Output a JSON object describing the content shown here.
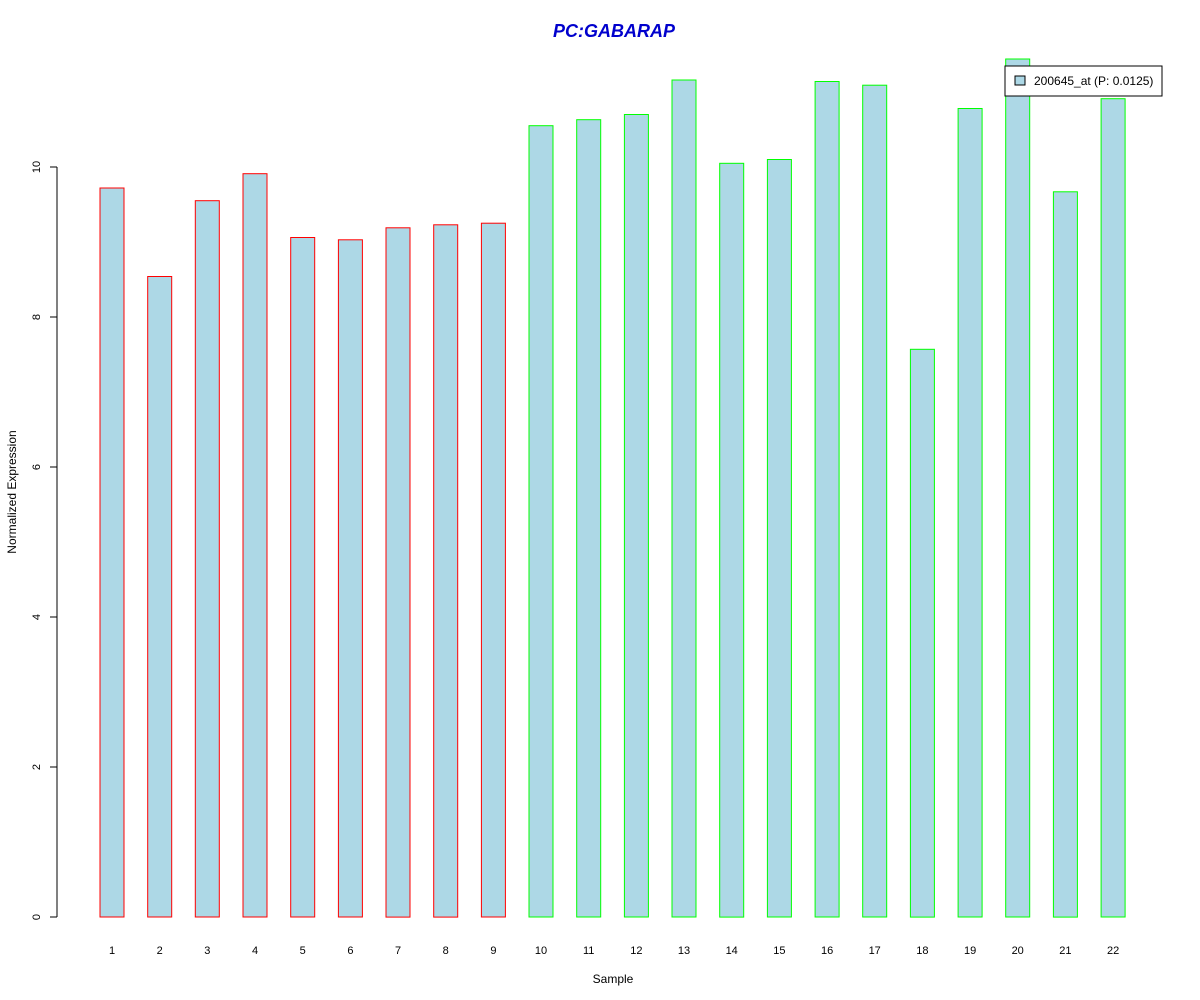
{
  "chart_data": {
    "type": "bar",
    "title": "PC:GABARAP",
    "xlabel": "Sample",
    "ylabel": "Normalized Expression",
    "categories": [
      "1",
      "2",
      "3",
      "4",
      "5",
      "6",
      "7",
      "8",
      "9",
      "10",
      "11",
      "12",
      "13",
      "14",
      "15",
      "16",
      "17",
      "18",
      "19",
      "20",
      "21",
      "22"
    ],
    "series": [
      {
        "name": "200645_at (P: 0.0125)",
        "values": [
          9.72,
          8.54,
          9.55,
          9.91,
          9.06,
          9.03,
          9.19,
          9.23,
          9.25,
          10.55,
          10.63,
          10.7,
          11.16,
          10.05,
          10.1,
          11.14,
          11.09,
          7.57,
          10.78,
          11.44,
          9.67,
          10.91
        ],
        "fill": "#ADD8E6",
        "group": [
          "red",
          "red",
          "red",
          "red",
          "red",
          "red",
          "red",
          "red",
          "red",
          "green",
          "green",
          "green",
          "green",
          "green",
          "green",
          "green",
          "green",
          "green",
          "green",
          "green",
          "green",
          "green"
        ]
      }
    ],
    "yticks": [
      0,
      2,
      4,
      6,
      8,
      10
    ],
    "ylim": [
      0,
      11.44
    ],
    "grid": false,
    "legend_position": "top-right",
    "colors": {
      "title": "#0000CD",
      "bar_fill": "#ADD8E6",
      "border_red": "#FF0000",
      "border_green": "#00FF00",
      "axis": "#000000"
    }
  }
}
